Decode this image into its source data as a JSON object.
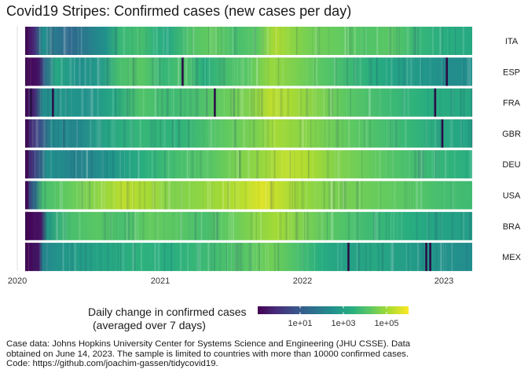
{
  "chart_data": {
    "type": "heatmap",
    "title": "Covid19 Stripes: Confirmed cases (new cases per day)",
    "x_ticks": [
      "2020",
      "2021",
      "2022",
      "2023"
    ],
    "countries": [
      {
        "code": "ITA",
        "profile": [
          [
            0,
            0.0
          ],
          [
            0.02,
            0.12
          ],
          [
            0.04,
            0.5
          ],
          [
            0.07,
            0.4
          ],
          [
            0.1,
            0.34
          ],
          [
            0.15,
            0.44
          ],
          [
            0.18,
            0.5
          ],
          [
            0.21,
            0.66
          ],
          [
            0.26,
            0.7
          ],
          [
            0.29,
            0.64
          ],
          [
            0.32,
            0.6
          ],
          [
            0.37,
            0.72
          ],
          [
            0.42,
            0.76
          ],
          [
            0.47,
            0.7
          ],
          [
            0.52,
            0.74
          ],
          [
            0.56,
            0.88
          ],
          [
            0.6,
            0.82
          ],
          [
            0.64,
            0.78
          ],
          [
            0.7,
            0.76
          ],
          [
            0.76,
            0.72
          ],
          [
            0.82,
            0.74
          ],
          [
            0.88,
            0.66
          ],
          [
            0.94,
            0.62
          ],
          [
            1.0,
            0.6
          ]
        ],
        "dark_lines": []
      },
      {
        "code": "ESP",
        "profile": [
          [
            0,
            0.0
          ],
          [
            0.03,
            0.05
          ],
          [
            0.045,
            0.35
          ],
          [
            0.07,
            0.6
          ],
          [
            0.12,
            0.5
          ],
          [
            0.17,
            0.54
          ],
          [
            0.21,
            0.7
          ],
          [
            0.26,
            0.74
          ],
          [
            0.31,
            0.66
          ],
          [
            0.36,
            0.72
          ],
          [
            0.4,
            0.62
          ],
          [
            0.45,
            0.7
          ],
          [
            0.5,
            0.74
          ],
          [
            0.55,
            0.84
          ],
          [
            0.6,
            0.8
          ],
          [
            0.66,
            0.74
          ],
          [
            0.72,
            0.68
          ],
          [
            0.78,
            0.62
          ],
          [
            0.84,
            0.56
          ],
          [
            0.9,
            0.52
          ],
          [
            0.95,
            0.48
          ],
          [
            1.0,
            0.5
          ]
        ],
        "dark_lines": [
          0.352,
          0.943
        ]
      },
      {
        "code": "FRA",
        "profile": [
          [
            0,
            0.05
          ],
          [
            0.02,
            0.1
          ],
          [
            0.04,
            0.48
          ],
          [
            0.08,
            0.52
          ],
          [
            0.14,
            0.5
          ],
          [
            0.2,
            0.6
          ],
          [
            0.26,
            0.72
          ],
          [
            0.32,
            0.68
          ],
          [
            0.38,
            0.7
          ],
          [
            0.44,
            0.76
          ],
          [
            0.5,
            0.8
          ],
          [
            0.55,
            0.9
          ],
          [
            0.6,
            0.86
          ],
          [
            0.66,
            0.8
          ],
          [
            0.72,
            0.74
          ],
          [
            0.78,
            0.7
          ],
          [
            0.84,
            0.66
          ],
          [
            0.9,
            0.62
          ],
          [
            1.0,
            0.6
          ]
        ],
        "dark_lines": [
          0.013,
          0.062,
          0.424,
          0.917
        ]
      },
      {
        "code": "GBR",
        "profile": [
          [
            0,
            0.05
          ],
          [
            0.03,
            0.22
          ],
          [
            0.06,
            0.48
          ],
          [
            0.12,
            0.46
          ],
          [
            0.18,
            0.58
          ],
          [
            0.26,
            0.66
          ],
          [
            0.34,
            0.64
          ],
          [
            0.4,
            0.7
          ],
          [
            0.46,
            0.76
          ],
          [
            0.52,
            0.8
          ],
          [
            0.56,
            0.86
          ],
          [
            0.62,
            0.82
          ],
          [
            0.68,
            0.78
          ],
          [
            0.74,
            0.74
          ],
          [
            0.8,
            0.7
          ],
          [
            0.86,
            0.66
          ],
          [
            0.93,
            0.6
          ],
          [
            1.0,
            0.58
          ]
        ],
        "dark_lines": [
          0.933
        ]
      },
      {
        "code": "DEU",
        "profile": [
          [
            0,
            0.05
          ],
          [
            0.02,
            0.18
          ],
          [
            0.05,
            0.5
          ],
          [
            0.12,
            0.44
          ],
          [
            0.18,
            0.5
          ],
          [
            0.26,
            0.62
          ],
          [
            0.34,
            0.7
          ],
          [
            0.42,
            0.74
          ],
          [
            0.48,
            0.8
          ],
          [
            0.53,
            0.84
          ],
          [
            0.58,
            0.9
          ],
          [
            0.63,
            0.88
          ],
          [
            0.68,
            0.82
          ],
          [
            0.74,
            0.78
          ],
          [
            0.8,
            0.74
          ],
          [
            0.86,
            0.7
          ],
          [
            0.92,
            0.66
          ],
          [
            1.0,
            0.62
          ]
        ],
        "dark_lines": []
      },
      {
        "code": "USA",
        "profile": [
          [
            0,
            0.05
          ],
          [
            0.02,
            0.35
          ],
          [
            0.04,
            0.7
          ],
          [
            0.1,
            0.76
          ],
          [
            0.16,
            0.82
          ],
          [
            0.22,
            0.9
          ],
          [
            0.28,
            0.86
          ],
          [
            0.33,
            0.8
          ],
          [
            0.38,
            0.82
          ],
          [
            0.44,
            0.86
          ],
          [
            0.49,
            0.9
          ],
          [
            0.53,
            0.95
          ],
          [
            0.57,
            0.9
          ],
          [
            0.62,
            0.84
          ],
          [
            0.68,
            0.8
          ],
          [
            0.74,
            0.78
          ],
          [
            0.8,
            0.76
          ],
          [
            0.86,
            0.74
          ],
          [
            0.92,
            0.7
          ],
          [
            1.0,
            0.68
          ]
        ],
        "dark_lines": []
      },
      {
        "code": "BRA",
        "profile": [
          [
            0,
            0.0
          ],
          [
            0.035,
            0.05
          ],
          [
            0.05,
            0.55
          ],
          [
            0.1,
            0.7
          ],
          [
            0.16,
            0.74
          ],
          [
            0.22,
            0.7
          ],
          [
            0.28,
            0.76
          ],
          [
            0.34,
            0.74
          ],
          [
            0.4,
            0.7
          ],
          [
            0.46,
            0.76
          ],
          [
            0.52,
            0.82
          ],
          [
            0.56,
            0.86
          ],
          [
            0.62,
            0.8
          ],
          [
            0.68,
            0.74
          ],
          [
            0.74,
            0.7
          ],
          [
            0.8,
            0.66
          ],
          [
            0.86,
            0.62
          ],
          [
            0.92,
            0.58
          ],
          [
            1.0,
            0.55
          ]
        ],
        "dark_lines": []
      },
      {
        "code": "MEX",
        "profile": [
          [
            0,
            0.0
          ],
          [
            0.03,
            0.05
          ],
          [
            0.04,
            0.45
          ],
          [
            0.08,
            0.52
          ],
          [
            0.14,
            0.56
          ],
          [
            0.2,
            0.6
          ],
          [
            0.26,
            0.64
          ],
          [
            0.32,
            0.62
          ],
          [
            0.38,
            0.66
          ],
          [
            0.44,
            0.7
          ],
          [
            0.5,
            0.74
          ],
          [
            0.55,
            0.78
          ],
          [
            0.6,
            0.72
          ],
          [
            0.66,
            0.62
          ],
          [
            0.72,
            0.56
          ],
          [
            0.78,
            0.6
          ],
          [
            0.84,
            0.56
          ],
          [
            0.9,
            0.52
          ],
          [
            1.0,
            0.48
          ]
        ],
        "dark_lines": [
          0.723,
          0.897,
          0.906
        ]
      }
    ],
    "legend": {
      "title_line1": "Daily change in confirmed cases",
      "title_line2": "(averaged over 7 days)",
      "ticks": [
        "1e+01",
        "1e+03",
        "1e+05"
      ],
      "position": "bottom"
    },
    "color_scale": [
      "#440154",
      "#472d7b",
      "#3b528b",
      "#2c728e",
      "#21918c",
      "#28ae80",
      "#5ec962",
      "#addc30",
      "#fde725"
    ],
    "grid": false
  },
  "caption": {
    "line1": "Case data: Johns Hopkins University Center for Systems Science and Engineering (JHU CSSE). Data",
    "line2": "obtained on June 14, 2023. The sample is limited to countries with more than 10000 confirmed cases.",
    "line3": "Code: https://github.com/joachim-gassen/tidycovid19."
  }
}
